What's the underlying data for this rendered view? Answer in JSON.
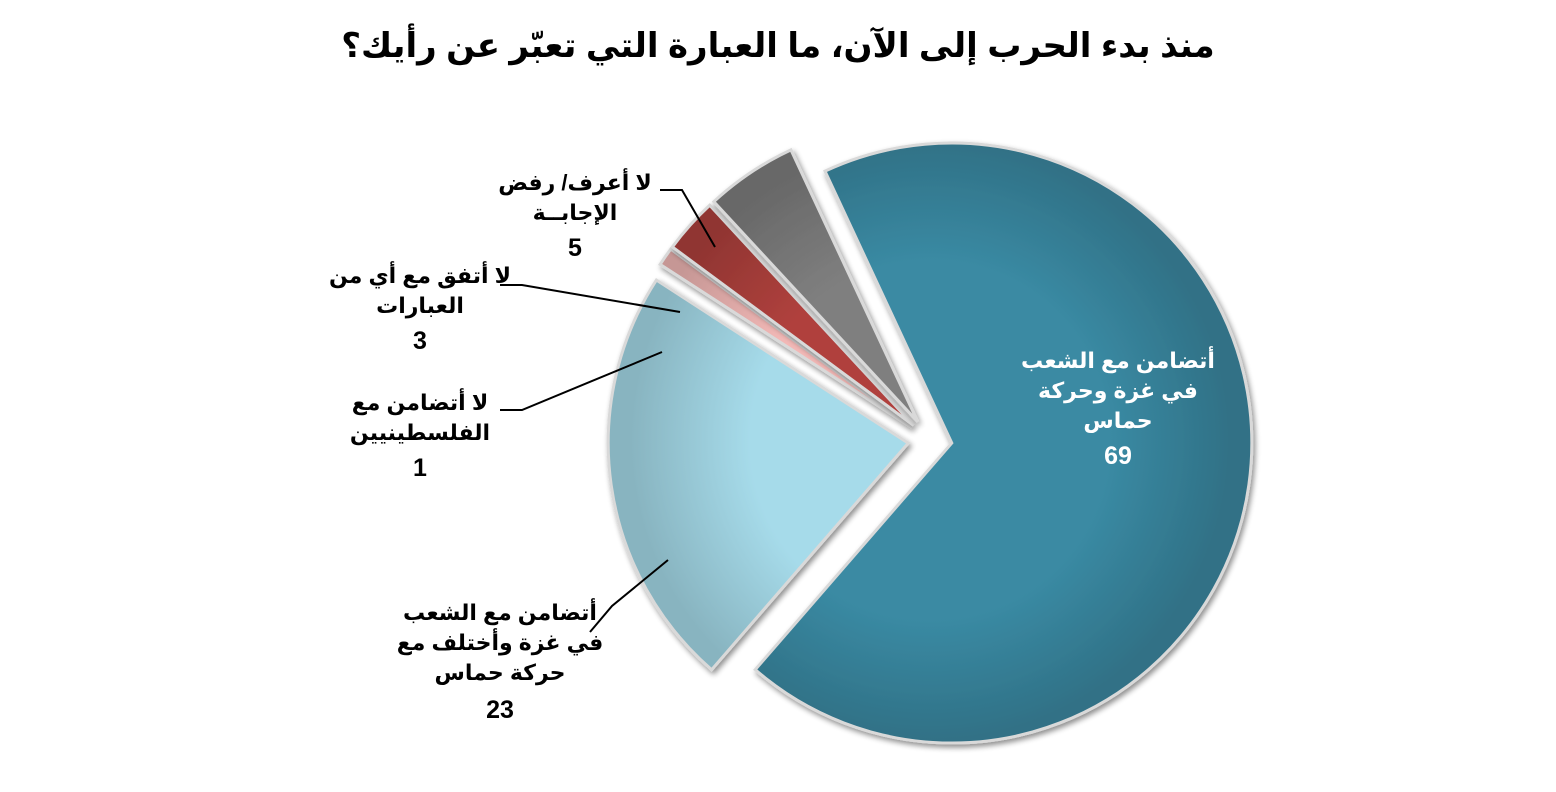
{
  "chart_data": {
    "type": "pie",
    "title": "منذ بدء الحرب إلى الآن، ما العبارة التي تعبّر عن رأيك؟",
    "slices": [
      {
        "lines": [
          "أتضامن مع الشعب",
          "في غزة وحركة",
          "حماس"
        ],
        "value": 69,
        "color": "#3a8aa3"
      },
      {
        "lines": [
          "أتضامن مع الشعب",
          "في غزة وأختلف مع",
          "حركة حماس"
        ],
        "value": 23,
        "color": "#a6dbea"
      },
      {
        "lines": [
          "لا أتضامن مع",
          "الفلسطينيين"
        ],
        "value": 1,
        "color": "#f2b8b6"
      },
      {
        "lines": [
          "لا أتفق مع أي من",
          "العبارات"
        ],
        "value": 3,
        "color": "#b0413d"
      },
      {
        "lines": [
          "لا أعرف/ رفض",
          "الإجابــة"
        ],
        "value": 5,
        "color": "#7f7f7f"
      }
    ],
    "legend": "none",
    "data_labels": "outside with leader lines"
  }
}
